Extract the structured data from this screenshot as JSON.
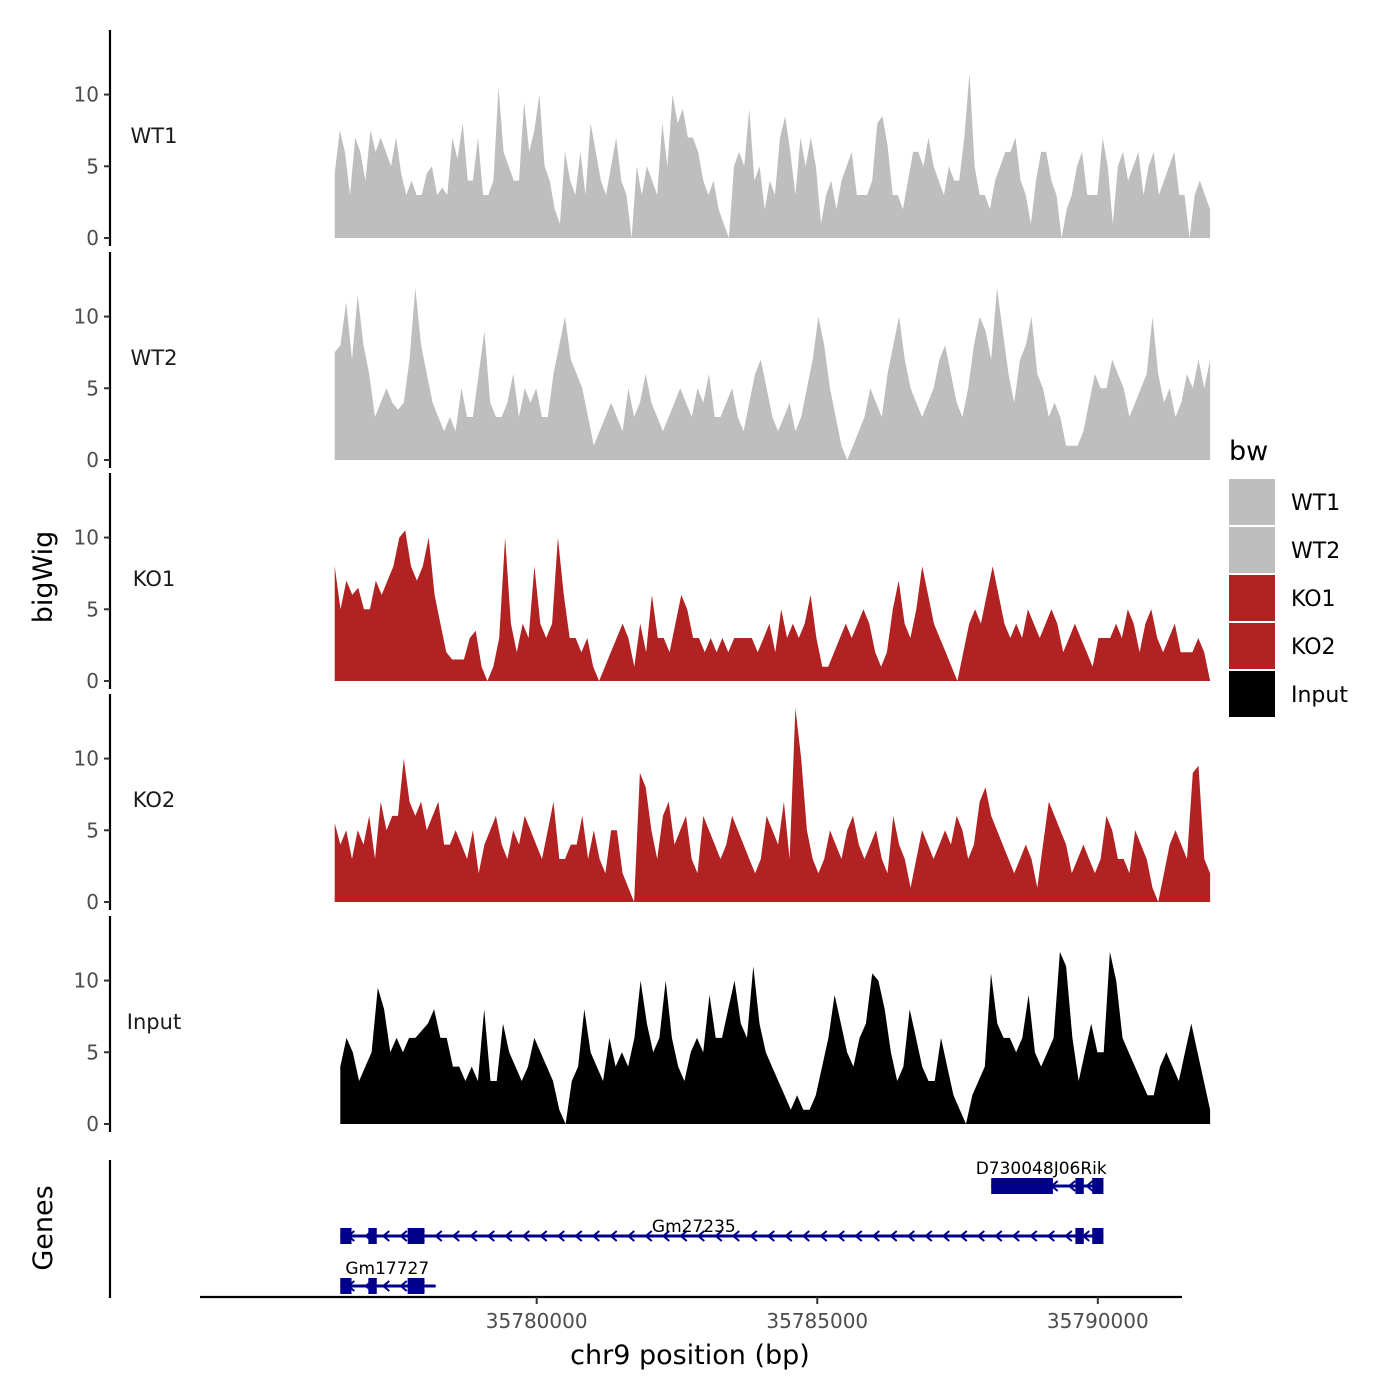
{
  "chart_data": {
    "type": "area",
    "chromosome": "chr9",
    "xlabel": "chr9 position (bp)",
    "ylabel": "bigWig",
    "genes_panel_label": "Genes",
    "xlim": [
      35774000,
      35791500
    ],
    "x_ticks": [
      35780000,
      35785000,
      35790000
    ],
    "x_tick_labels": [
      "35780000",
      "35785000",
      "35790000"
    ],
    "ylim": [
      0,
      14.5
    ],
    "y_ticks": [
      0,
      5,
      10
    ],
    "y_tick_labels": [
      "0",
      "5",
      "10"
    ],
    "tracks": [
      {
        "name": "WT1",
        "color": "#bebebe",
        "x_start": 35776400,
        "x_end": 35792000,
        "values": [
          4.5,
          7.5,
          6,
          3,
          7,
          6,
          4,
          7.5,
          6,
          7,
          6,
          5,
          7,
          4.5,
          3,
          4,
          3,
          3,
          4.5,
          5,
          3,
          3.5,
          3,
          7,
          5.5,
          8,
          4,
          4,
          7,
          3,
          3,
          4,
          10.5,
          6,
          5,
          4,
          4,
          9.5,
          6,
          7.5,
          10,
          5,
          4,
          2,
          1,
          6,
          4,
          3,
          6,
          3,
          8,
          6,
          4,
          3,
          5,
          7,
          4,
          3,
          0,
          5,
          3,
          5,
          4,
          3,
          8,
          5,
          10,
          8,
          9,
          7,
          7,
          6,
          4,
          3,
          4,
          2,
          1,
          0,
          5,
          6,
          5,
          9,
          4,
          5,
          2,
          4,
          3,
          7,
          8.5,
          6,
          3,
          7,
          5,
          7,
          5,
          1,
          3,
          4,
          2,
          4,
          5,
          6,
          3,
          3,
          3,
          4,
          8,
          8.5,
          6.5,
          3,
          3,
          2,
          4,
          6,
          6,
          5,
          7,
          5,
          4,
          3,
          5,
          4,
          4,
          7,
          11.5,
          5,
          3,
          3,
          2,
          4,
          5,
          6,
          6,
          7,
          4,
          3,
          1,
          4,
          6,
          6,
          4,
          3,
          0,
          2,
          3,
          5,
          6,
          3,
          3,
          3,
          7,
          5,
          1,
          5,
          6,
          4,
          5,
          6,
          3,
          5,
          6,
          3,
          4,
          5,
          6,
          3,
          3,
          0,
          3,
          4,
          3,
          2
        ]
      },
      {
        "name": "WT2",
        "color": "#bebebe",
        "x_start": 35776400,
        "x_end": 35792000,
        "values": [
          7.5,
          8,
          11,
          7,
          11.5,
          8,
          6,
          3,
          4,
          5,
          4,
          3.5,
          4,
          7,
          12,
          8,
          6,
          4,
          3,
          2,
          3,
          2,
          5,
          3,
          3,
          6,
          9,
          4,
          3,
          3,
          4,
          6,
          3,
          5,
          4,
          5,
          3,
          3,
          6,
          8,
          10,
          7,
          6,
          5,
          3,
          1,
          2,
          3,
          4,
          3,
          2,
          5,
          3,
          4,
          6,
          4,
          3,
          2,
          3,
          4,
          5,
          4,
          3,
          5,
          4,
          6,
          3,
          3,
          4,
          5,
          3,
          2,
          4,
          6,
          7,
          5,
          3,
          2,
          3,
          4,
          2,
          3,
          5,
          7,
          10,
          8,
          5,
          3,
          1,
          0,
          1,
          2,
          3,
          5,
          4,
          3,
          6,
          8,
          10,
          7,
          5,
          4,
          3,
          4,
          5,
          7,
          8,
          6,
          4,
          3,
          5,
          8,
          10,
          9,
          7,
          12,
          9,
          6,
          4,
          7,
          8,
          10,
          6,
          5,
          3,
          4,
          3,
          1,
          1,
          1,
          2,
          4,
          6,
          5,
          5,
          7,
          6,
          5,
          3,
          4,
          5,
          6,
          10,
          6,
          4,
          5,
          3,
          4,
          6,
          5,
          7,
          5,
          7
        ]
      },
      {
        "name": "KO1",
        "color": "#b22222",
        "x_start": 35776400,
        "x_end": 35792000,
        "values": [
          8,
          5,
          7,
          6,
          6.5,
          5,
          5,
          7,
          6,
          7,
          8,
          10,
          10.5,
          8,
          7,
          8,
          10,
          6,
          4,
          2,
          1.5,
          1.5,
          1.5,
          3,
          3.5,
          1,
          0,
          1,
          3,
          10,
          4,
          2,
          4,
          3,
          8,
          4,
          3,
          4,
          10,
          6,
          3,
          3,
          2,
          3,
          1,
          0,
          1,
          2,
          3,
          4,
          3,
          1,
          4,
          2,
          6,
          3,
          3,
          2,
          4,
          6,
          5,
          3,
          3,
          2,
          3,
          2,
          3,
          2,
          3,
          3,
          3,
          3,
          2,
          3,
          4,
          2,
          5,
          3,
          4,
          3,
          4,
          6,
          3,
          1,
          1,
          2,
          3,
          4,
          3,
          4,
          5,
          4,
          2,
          1,
          2,
          5,
          7,
          4,
          3,
          5,
          8,
          6,
          4,
          3,
          2,
          1,
          0,
          2,
          4,
          5,
          4,
          6,
          8,
          6,
          4,
          3,
          4,
          3,
          5,
          4,
          3,
          4,
          5,
          4,
          2,
          3,
          4,
          3,
          2,
          1,
          3,
          3,
          3,
          4,
          3,
          5,
          4,
          2,
          4,
          5,
          3,
          2,
          3,
          4,
          2,
          2,
          2,
          3,
          2,
          0
        ]
      },
      {
        "name": "KO2",
        "color": "#b22222",
        "x_start": 35776400,
        "x_end": 35792000,
        "values": [
          5.5,
          4,
          5,
          3,
          5,
          4,
          6,
          3,
          7,
          5,
          6,
          6,
          10,
          7,
          6,
          7,
          5,
          6,
          7,
          4,
          4,
          5,
          4,
          3,
          5,
          2,
          4,
          5,
          6,
          4,
          3,
          5,
          4,
          6,
          5,
          4,
          3,
          5,
          7,
          3,
          3,
          4,
          4,
          6,
          3,
          5,
          3,
          2,
          5,
          5,
          2,
          1,
          0,
          9,
          8,
          5,
          3,
          6,
          7,
          4,
          5,
          6,
          3,
          2,
          6,
          5,
          4,
          3,
          4,
          6,
          5,
          4,
          3,
          2,
          3,
          6,
          5,
          4,
          7,
          3,
          13.5,
          10,
          5,
          3,
          2,
          3,
          5,
          4,
          3,
          5,
          6,
          4,
          3,
          4,
          5,
          3,
          2,
          6,
          4,
          3,
          1,
          3,
          5,
          4,
          3,
          4,
          5,
          4,
          6,
          5,
          3,
          4,
          7,
          8,
          6,
          5,
          4,
          3,
          2,
          3,
          4,
          3,
          1,
          4,
          7,
          6,
          5,
          4,
          2,
          3,
          4,
          3,
          2,
          3,
          6,
          5,
          3,
          3,
          2,
          5,
          4,
          3,
          1,
          0,
          2,
          4,
          5,
          4,
          3,
          9,
          9.5,
          3,
          2
        ]
      },
      {
        "name": "Input",
        "color": "#000000",
        "x_start": 35776500,
        "x_end": 35792000,
        "values": [
          4,
          6,
          5,
          3,
          4,
          5,
          9.5,
          8,
          5,
          6,
          5,
          6,
          6,
          6.5,
          7,
          8,
          6,
          6,
          4,
          4,
          3,
          4,
          3,
          8,
          3,
          3,
          7,
          5,
          4,
          3,
          4,
          6,
          5,
          4,
          3,
          1,
          0,
          3,
          4,
          8,
          5,
          4,
          3,
          6,
          4,
          5,
          4,
          6,
          10,
          7,
          5,
          6,
          10,
          6,
          4,
          3,
          5,
          6,
          5,
          9,
          6,
          6,
          8,
          10,
          7,
          6,
          11,
          7,
          5,
          4,
          3,
          2,
          1,
          2,
          1,
          1,
          2,
          4,
          6,
          9,
          7,
          5,
          4,
          6,
          7,
          10.5,
          10,
          8,
          5,
          3,
          4,
          8,
          6,
          4,
          3,
          3,
          6,
          4,
          2,
          1,
          0,
          2,
          3,
          4,
          10.5,
          7,
          6,
          6,
          5,
          6,
          9,
          5,
          4,
          5,
          6,
          12,
          11,
          6,
          3,
          5,
          7,
          5,
          5,
          12,
          10,
          6,
          5,
          4,
          3,
          2,
          2,
          4,
          5,
          4,
          3,
          5,
          7,
          5,
          3,
          1
        ]
      }
    ],
    "genes": [
      {
        "name": "D730048J06Rik",
        "strand": "-",
        "start": 35788100,
        "end": 35790100,
        "exons": [
          [
            35788100,
            35789200
          ],
          [
            35789600,
            35789750
          ],
          [
            35789900,
            35790100
          ]
        ]
      },
      {
        "name": "Gm27235",
        "strand": "-",
        "start": 35776500,
        "end": 35790100,
        "exons": [
          [
            35776500,
            35776700
          ],
          [
            35777000,
            35777150
          ],
          [
            35777700,
            35778000
          ],
          [
            35789600,
            35789750
          ],
          [
            35789900,
            35790100
          ]
        ]
      },
      {
        "name": "Gm17727",
        "strand": "-",
        "start": 35776500,
        "end": 35778200,
        "exons": [
          [
            35776500,
            35776700
          ],
          [
            35777000,
            35777150
          ],
          [
            35777700,
            35778000
          ]
        ]
      }
    ],
    "legend": {
      "title": "bw",
      "entries": [
        {
          "label": "WT1",
          "color": "#bebebe"
        },
        {
          "label": "WT2",
          "color": "#bebebe"
        },
        {
          "label": "KO1",
          "color": "#b22222"
        },
        {
          "label": "KO2",
          "color": "#b22222"
        },
        {
          "label": "Input",
          "color": "#000000"
        }
      ]
    },
    "gene_color": "#00008b"
  }
}
